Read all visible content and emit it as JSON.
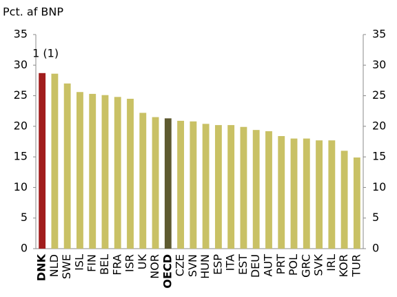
{
  "chart_data": {
    "type": "bar",
    "title": "Pct. af BNP",
    "annotation": "1 (1)",
    "categories": [
      "DNK",
      "NLD",
      "SWE",
      "ISL",
      "FIN",
      "BEL",
      "FRA",
      "ISR",
      "UK",
      "NOR",
      "OECD",
      "CZE",
      "SVN",
      "HUN",
      "ESP",
      "ITA",
      "EST",
      "DEU",
      "AUT",
      "PRT",
      "POL",
      "GRC",
      "SVK",
      "IRL",
      "KOR",
      "TUR"
    ],
    "values": [
      28.7,
      28.6,
      27.0,
      25.6,
      25.3,
      25.1,
      24.8,
      24.5,
      22.2,
      21.5,
      21.3,
      20.9,
      20.8,
      20.4,
      20.2,
      20.2,
      19.9,
      19.4,
      19.2,
      18.4,
      18.0,
      18.0,
      17.7,
      17.7,
      16.0,
      14.9
    ],
    "colors": [
      "#a11d1d",
      "#c9c165",
      "#c9c165",
      "#c9c165",
      "#c9c165",
      "#c9c165",
      "#c9c165",
      "#c9c165",
      "#c9c165",
      "#c9c165",
      "#5e5a30",
      "#c9c165",
      "#c9c165",
      "#c9c165",
      "#c9c165",
      "#c9c165",
      "#c9c165",
      "#c9c165",
      "#c9c165",
      "#c9c165",
      "#c9c165",
      "#c9c165",
      "#c9c165",
      "#c9c165",
      "#c9c165",
      "#c9c165"
    ],
    "ylim": [
      0,
      35
    ],
    "yticks": [
      0,
      5,
      10,
      15,
      20,
      25,
      30,
      35
    ],
    "y2lim": [
      0,
      35
    ],
    "y2ticks": [
      0,
      5,
      10,
      15,
      20,
      25,
      30,
      35
    ]
  }
}
